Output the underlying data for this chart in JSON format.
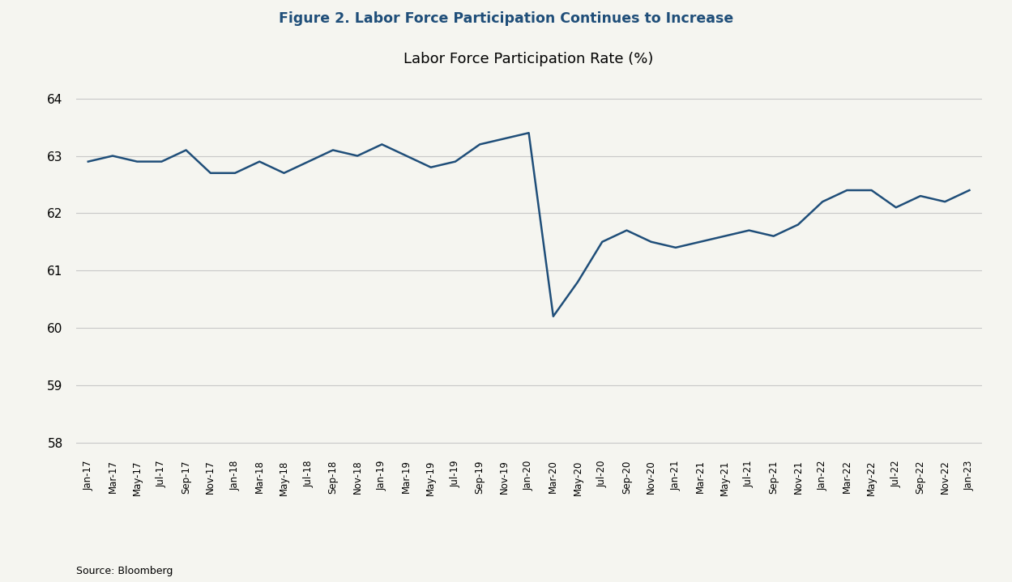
{
  "title": "Figure 2. Labor Force Participation Continues to Increase",
  "subtitle": "Labor Force Participation Rate (%)",
  "source": "Source: Bloomberg",
  "line_color": "#1f4e79",
  "background_color": "#f5f5f0",
  "title_color": "#1f4e79",
  "plot_bg_color": "#f5f5f0",
  "ylim": [
    57.8,
    64.5
  ],
  "yticks": [
    58,
    59,
    60,
    61,
    62,
    63,
    64
  ],
  "labels": [
    "Jan-17",
    "Mar-17",
    "May-17",
    "Jul-17",
    "Sep-17",
    "Nov-17",
    "Jan-18",
    "Mar-18",
    "May-18",
    "Jul-18",
    "Sep-18",
    "Nov-18",
    "Jan-19",
    "Mar-19",
    "May-19",
    "Jul-19",
    "Sep-19",
    "Nov-19",
    "Jan-20",
    "Mar-20",
    "May-20",
    "Jul-20",
    "Sep-20",
    "Nov-20",
    "Jan-21",
    "Mar-21",
    "May-21",
    "Jul-21",
    "Sep-21",
    "Nov-21",
    "Jan-22",
    "Mar-22",
    "May-22",
    "Jul-22",
    "Sep-22",
    "Nov-22",
    "Jan-23"
  ],
  "values": [
    62.9,
    63.0,
    62.9,
    62.9,
    63.1,
    62.7,
    62.7,
    62.9,
    62.7,
    62.9,
    63.1,
    63.0,
    63.2,
    63.0,
    62.8,
    62.9,
    63.2,
    63.3,
    63.4,
    60.2,
    60.8,
    61.5,
    61.7,
    61.5,
    61.4,
    61.5,
    61.6,
    61.7,
    61.6,
    61.8,
    62.2,
    62.4,
    62.4,
    62.1,
    62.3,
    62.2,
    62.4
  ]
}
